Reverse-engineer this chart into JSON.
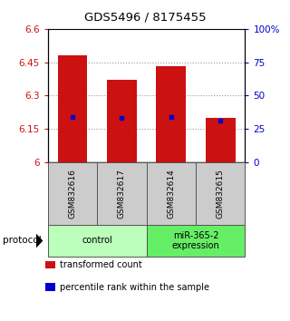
{
  "title": "GDS5496 / 8175455",
  "samples": [
    "GSM832616",
    "GSM832617",
    "GSM832614",
    "GSM832615"
  ],
  "bar_values": [
    6.48,
    6.37,
    6.43,
    6.2
  ],
  "blue_marker_values": [
    6.205,
    6.2,
    6.203,
    6.185
  ],
  "bar_color": "#cc1111",
  "marker_color": "#0000cc",
  "ylim_left": [
    6.0,
    6.6
  ],
  "ylim_right": [
    0,
    100
  ],
  "yticks_left": [
    6.0,
    6.15,
    6.3,
    6.45,
    6.6
  ],
  "ytick_labels_left": [
    "6",
    "6.15",
    "6.3",
    "6.45",
    "6.6"
  ],
  "yticks_right": [
    0,
    25,
    50,
    75,
    100
  ],
  "ytick_labels_right": [
    "0",
    "25",
    "50",
    "75",
    "100%"
  ],
  "groups": [
    {
      "label": "control",
      "samples": [
        0,
        1
      ],
      "color": "#bbffbb"
    },
    {
      "label": "miR-365-2\nexpression",
      "samples": [
        2,
        3
      ],
      "color": "#66ee66"
    }
  ],
  "protocol_label": "protocol",
  "legend_items": [
    {
      "color": "#cc1111",
      "label": "transformed count"
    },
    {
      "color": "#0000cc",
      "label": "percentile rank within the sample"
    }
  ],
  "bar_bottom": 6.0,
  "bar_width": 0.6,
  "sample_box_color": "#cccccc",
  "sample_box_border": "#555555",
  "grid_color": "#999999",
  "bg_color": "#ffffff"
}
